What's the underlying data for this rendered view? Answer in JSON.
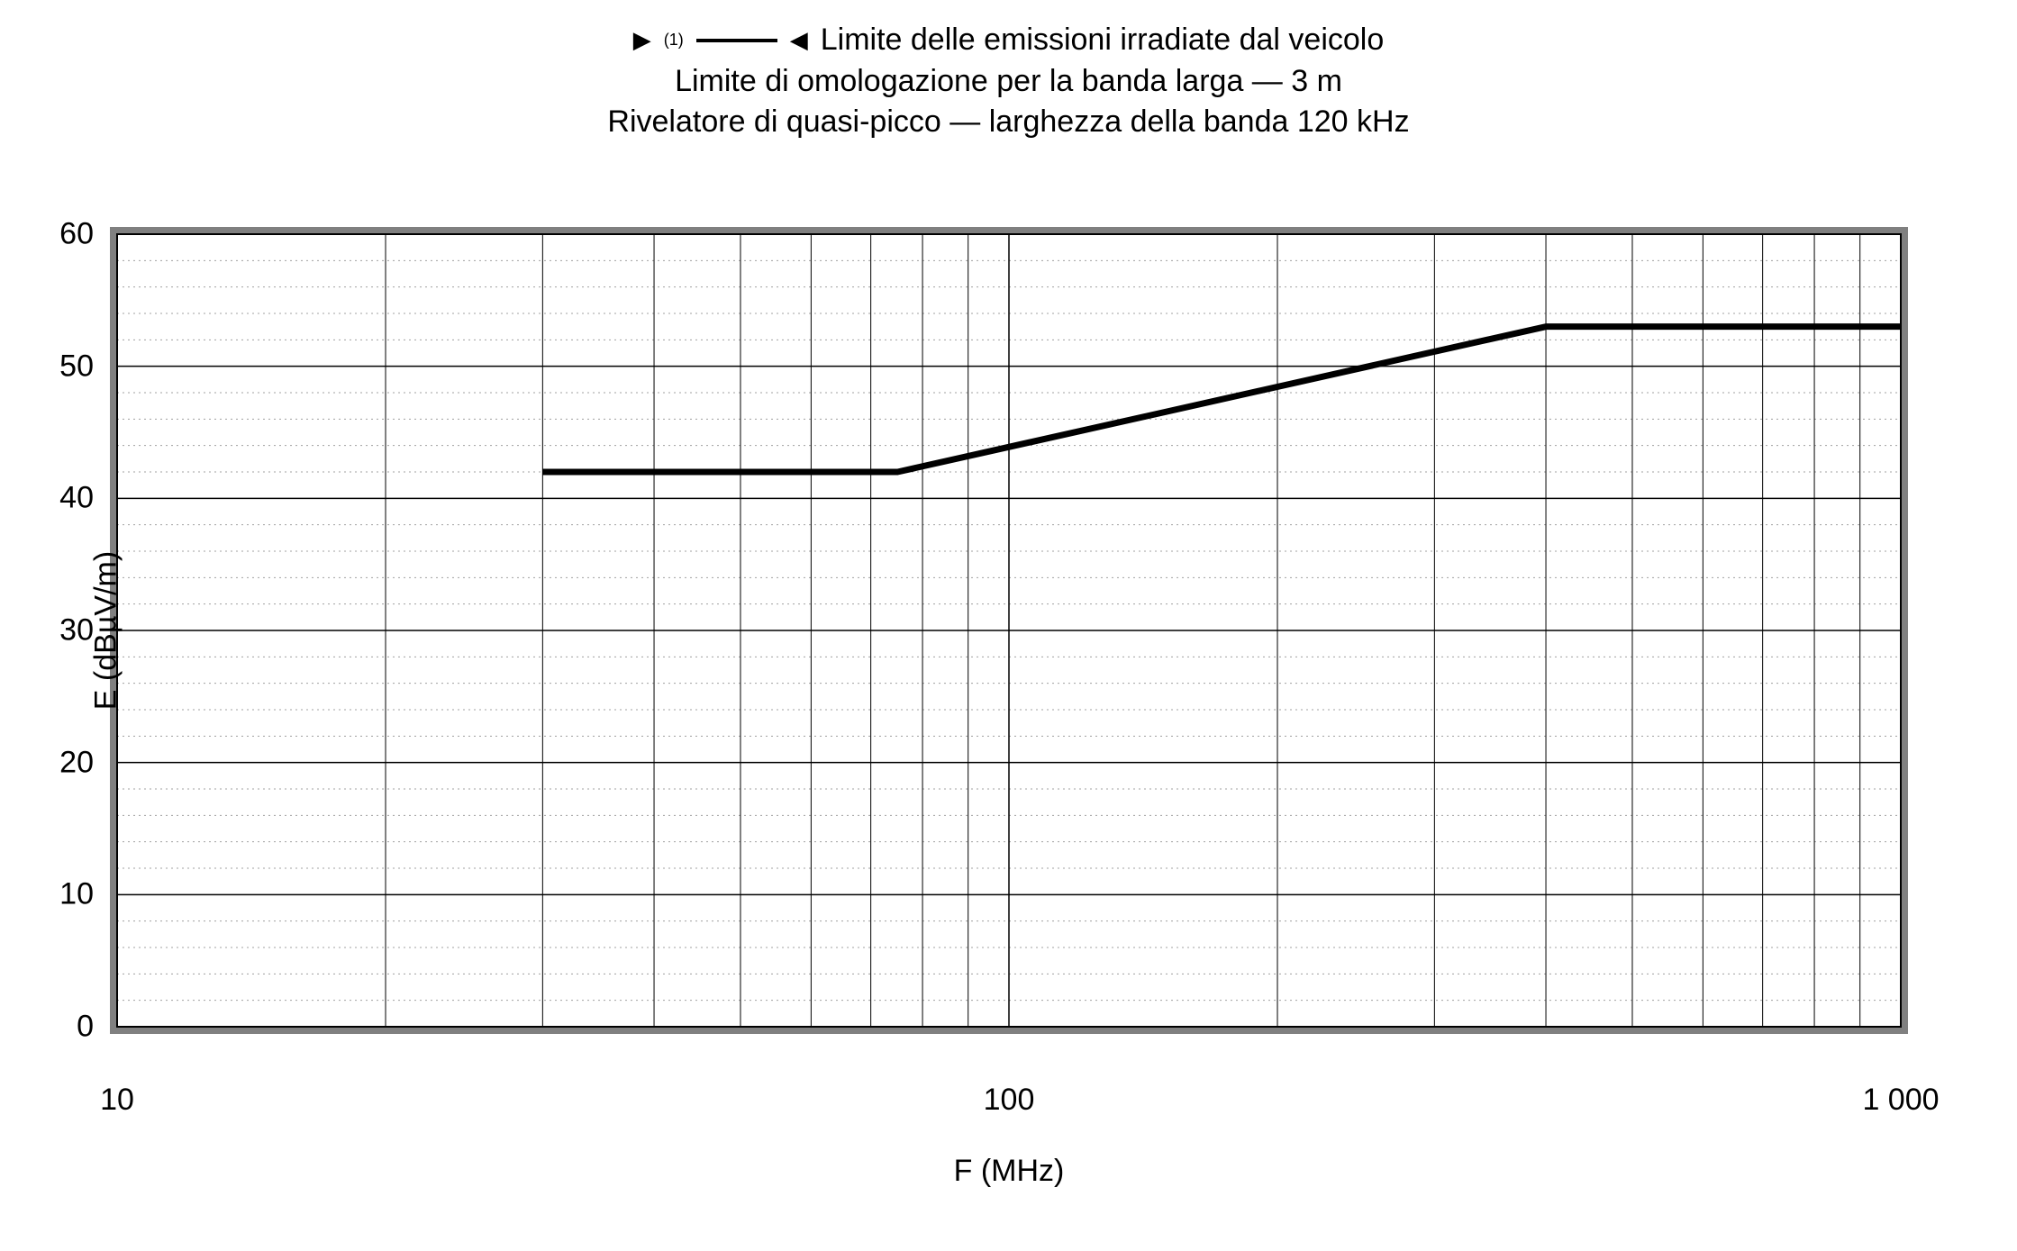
{
  "title": {
    "legend_marker_super": "(1)",
    "legend_arrow_left": "▶",
    "legend_arrow_right": "◀",
    "line1_text": "Limite delle emissioni irradiate dal veicolo",
    "line2_text": "Limite di omologazione per la banda larga — 3 m",
    "line3_text": "Rivelatore di quasi-picco — larghezza della banda 120 kHz",
    "fontsize": 34,
    "color": "#000000"
  },
  "chart": {
    "type": "line",
    "background_color": "#ffffff",
    "plot_border_color": "#000000",
    "plot_border_width": 2,
    "frame_stipple_color": "#808080",
    "frame_stipple_width": 8,
    "xscale": "log",
    "xlim": [
      10,
      1000
    ],
    "ylim": [
      0,
      60
    ],
    "ytick_step": 10,
    "xticks_major": [
      10,
      100,
      1000
    ],
    "xticks_major_labels": [
      "10",
      "100",
      "1 000"
    ],
    "xticks_minor": [
      20,
      30,
      40,
      50,
      60,
      70,
      80,
      90,
      200,
      300,
      400,
      500,
      600,
      700,
      800,
      900
    ],
    "ytick_labels": [
      "0",
      "10",
      "20",
      "30",
      "40",
      "50",
      "60"
    ],
    "xlabel": "F (MHz)",
    "ylabel": "E (dBµV/m)",
    "label_fontsize": 34,
    "tick_fontsize": 34,
    "major_grid_color": "#000000",
    "major_grid_width": 1.5,
    "minor_grid_color": "#000000",
    "minor_grid_width": 1,
    "dotted_grid_color": "#a0a0a0",
    "dotted_grid_dash": "2,4",
    "y_dotted_every": 2,
    "series": {
      "color": "#000000",
      "width": 7,
      "points": [
        {
          "x": 30,
          "y": 42
        },
        {
          "x": 75,
          "y": 42
        },
        {
          "x": 400,
          "y": 53
        },
        {
          "x": 1000,
          "y": 53
        }
      ]
    }
  }
}
